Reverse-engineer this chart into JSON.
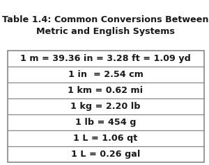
{
  "title_line1": "Table 1.4: Common Conversions Between",
  "title_line2": "Metric and English Systems",
  "rows": [
    "1 m = 39.36 in = 3.28 ft = 1.09 yd",
    "1 in  = 2.54 cm",
    "1 km = 0.62 mi",
    "1 kg = 2.20 lb",
    "1 lb = 454 g",
    "1 L = 1.06 qt",
    "1 L = 0.26 gal"
  ],
  "bg_color": "#ffffff",
  "text_color": "#1a1a1a",
  "title_color": "#1a1a1a",
  "border_color": "#888888",
  "title_fontsize": 9.2,
  "row_fontsize": 9.2
}
